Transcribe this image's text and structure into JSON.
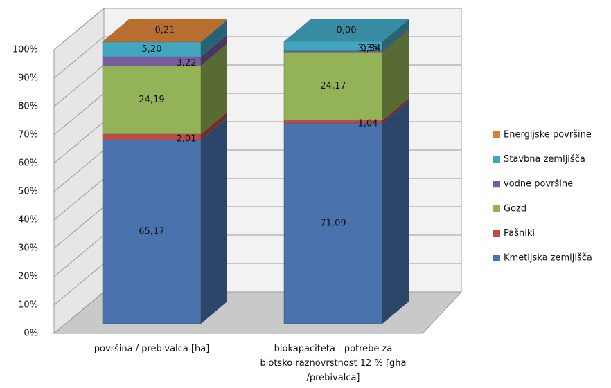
{
  "chart_data": {
    "type": "bar3d_stacked_percent",
    "categories": [
      "površina / prebivalca [ha]",
      "biokapaciteta - potrebe za biotsko raznovrstnost 12 % [gha /prebivalca]"
    ],
    "series": [
      {
        "name": "Kmetijska zemljišča",
        "color": "#4a73ad",
        "values": [
          65.17,
          71.09
        ],
        "value_labels": [
          "65,17",
          "71,09"
        ]
      },
      {
        "name": "Pašniki",
        "color": "#bf4b48",
        "values": [
          2.01,
          1.04
        ],
        "value_labels": [
          "2,01",
          "1,04"
        ]
      },
      {
        "name": "Gozd",
        "color": "#94b257",
        "values": [
          24.19,
          24.17
        ],
        "value_labels": [
          "24,19",
          "24,17"
        ]
      },
      {
        "name": "vodne površine",
        "color": "#7a5d9c",
        "values": [
          3.22,
          0.34
        ],
        "value_labels": [
          "3,22",
          "0,34"
        ]
      },
      {
        "name": "Stavbna zemljišča",
        "color": "#41a5c0",
        "values": [
          5.2,
          3.35
        ],
        "value_labels": [
          "5,20",
          "3,35"
        ]
      },
      {
        "name": "Energijske površine",
        "color": "#d9803a",
        "values": [
          0.21,
          0.0
        ],
        "value_labels": [
          "0,21",
          "0,00"
        ]
      }
    ],
    "ylim": [
      0,
      100
    ],
    "yticks": [
      {
        "value": 0,
        "label": "0%"
      },
      {
        "value": 10,
        "label": "10%"
      },
      {
        "value": 20,
        "label": "20%"
      },
      {
        "value": 30,
        "label": "30%"
      },
      {
        "value": 40,
        "label": "40%"
      },
      {
        "value": 50,
        "label": "50%"
      },
      {
        "value": 60,
        "label": "60%"
      },
      {
        "value": 70,
        "label": "70%"
      },
      {
        "value": 80,
        "label": "80%"
      },
      {
        "value": 90,
        "label": "90%"
      },
      {
        "value": 100,
        "label": "100%"
      }
    ],
    "grid": true,
    "legend": "right"
  }
}
